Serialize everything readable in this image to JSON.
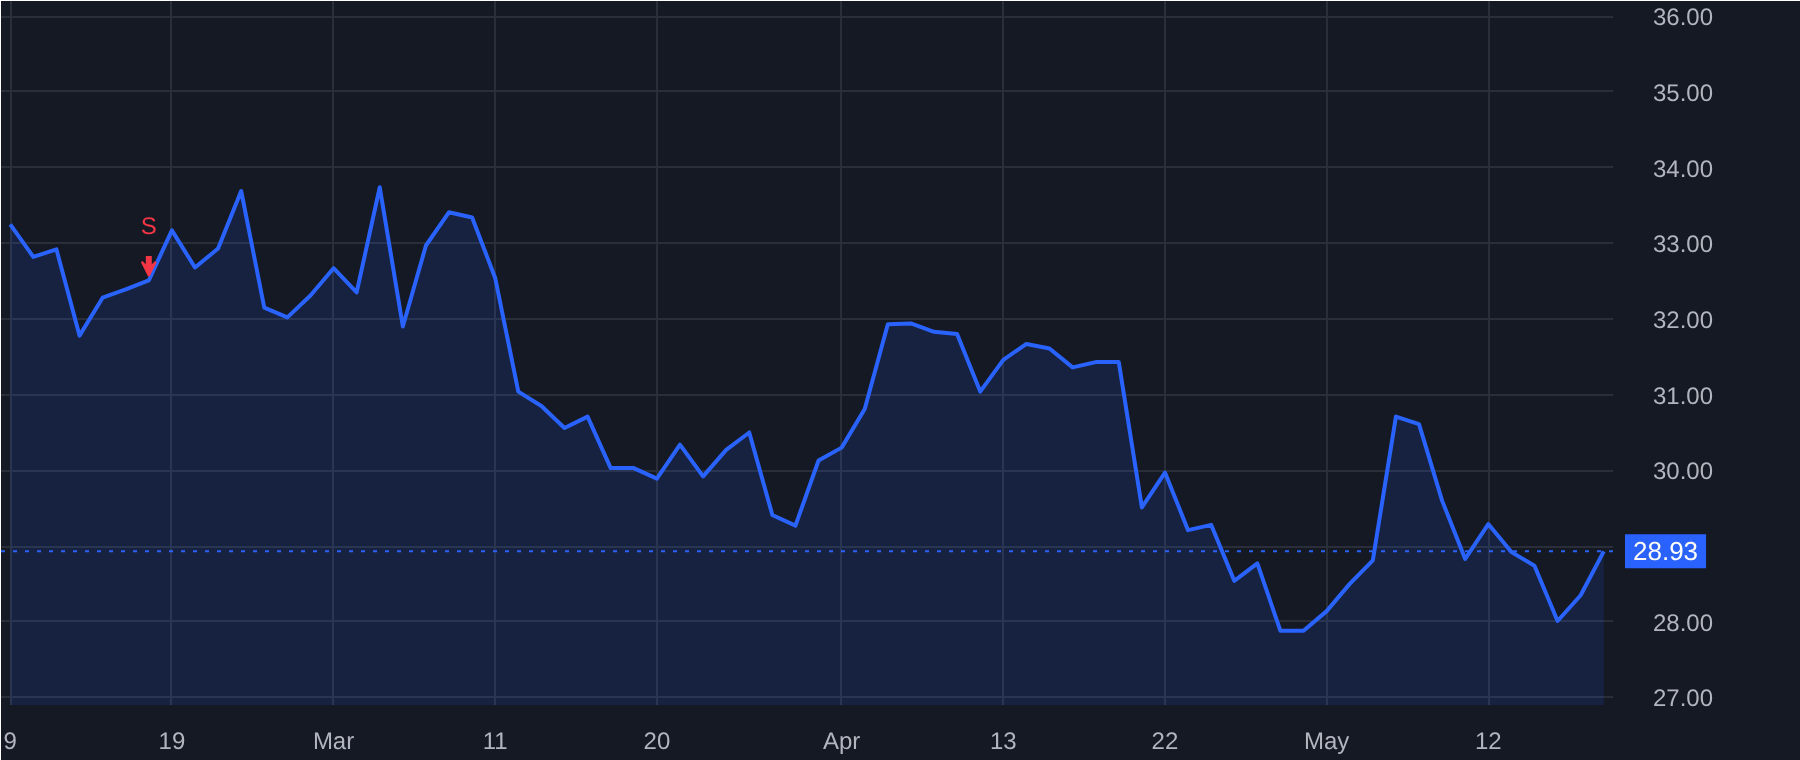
{
  "chart_data": {
    "type": "area",
    "categories": [
      "9",
      null,
      null,
      null,
      null,
      null,
      null,
      "19",
      null,
      null,
      null,
      null,
      null,
      null,
      "Mar",
      null,
      null,
      null,
      null,
      null,
      null,
      "11",
      null,
      null,
      null,
      null,
      null,
      null,
      "20",
      null,
      null,
      null,
      null,
      null,
      null,
      null,
      "Apr",
      null,
      null,
      null,
      null,
      null,
      null,
      "13",
      null,
      null,
      null,
      null,
      null,
      null,
      "22",
      null,
      null,
      null,
      null,
      null,
      null,
      "May",
      null,
      null,
      null,
      null,
      null,
      null,
      "12",
      null,
      null,
      null,
      null,
      null
    ],
    "series": [
      {
        "color": "#2962ff",
        "values": [
          33.25,
          32.82,
          32.92,
          31.78,
          32.28,
          32.39,
          32.51,
          33.17,
          32.68,
          32.93,
          33.69,
          32.15,
          32.02,
          32.31,
          32.67,
          32.35,
          33.74,
          31.9,
          32.97,
          33.41,
          33.34,
          32.54,
          31.04,
          30.85,
          30.56,
          30.71,
          30.03,
          30.03,
          29.89,
          30.34,
          29.92,
          30.27,
          30.5,
          29.41,
          29.27,
          30.13,
          30.3,
          30.81,
          31.93,
          31.94,
          31.83,
          31.8,
          31.04,
          31.46,
          31.67,
          31.61,
          31.36,
          31.43,
          31.43,
          29.51,
          29.97,
          29.21,
          29.28,
          28.54,
          28.77,
          27.88,
          27.88,
          28.14,
          28.5,
          28.81,
          30.71,
          30.61,
          29.6,
          28.83,
          29.29,
          28.92,
          28.74,
          28.01,
          28.35,
          28.93
        ]
      }
    ],
    "ylim": [
      26.9,
      36.2
    ],
    "yticks": [
      {
        "value": 27,
        "label": "27.00"
      },
      {
        "value": 28,
        "label": "28.00"
      },
      {
        "value": 29,
        "label": null
      },
      {
        "value": 30,
        "label": "30.00"
      },
      {
        "value": 31,
        "label": "31.00"
      },
      {
        "value": 32,
        "label": "32.00"
      },
      {
        "value": 33,
        "label": "33.00"
      },
      {
        "value": 34,
        "label": "34.00"
      },
      {
        "value": 35,
        "label": "35.00"
      },
      {
        "value": 36,
        "label": "36.00"
      }
    ],
    "grid": true,
    "ref_lines": [
      {
        "axis": "y",
        "value": 28.93,
        "label": "28.93",
        "color": "#2962ff",
        "line_style": "dotted"
      }
    ],
    "annotations": [
      {
        "text": "S",
        "y": 32.51
      }
    ]
  }
}
